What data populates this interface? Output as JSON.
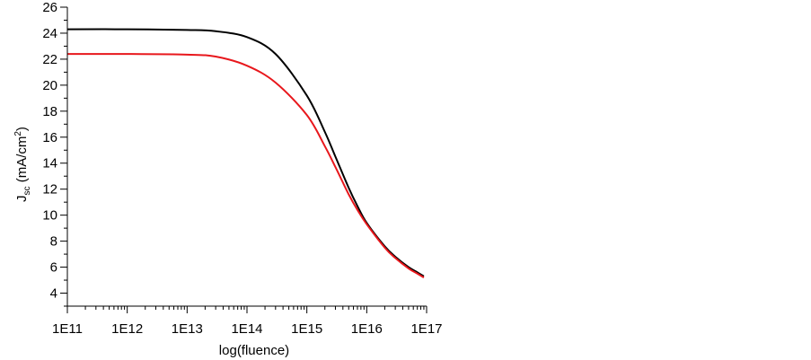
{
  "chart_data": {
    "type": "line",
    "title": "",
    "xlabel": "log(fluence)",
    "ylabel_main": "J",
    "ylabel_sub": "sc",
    "ylabel_unit_pre": " (mA/cm",
    "ylabel_unit_sup": "2",
    "ylabel_unit_post": ")",
    "x_scale": "log10",
    "xlim": [
      100000000000.0,
      1e+17
    ],
    "ylim": [
      3,
      26
    ],
    "x_ticks": [
      {
        "value": 100000000000.0,
        "label": "1E11"
      },
      {
        "value": 1000000000000.0,
        "label": "1E12"
      },
      {
        "value": 10000000000000.0,
        "label": "1E13"
      },
      {
        "value": 100000000000000.0,
        "label": "1E14"
      },
      {
        "value": 1000000000000000.0,
        "label": "1E15"
      },
      {
        "value": 1e+16,
        "label": "1E16"
      },
      {
        "value": 1e+17,
        "label": "1E17"
      }
    ],
    "y_ticks": [
      {
        "value": 4,
        "label": "4"
      },
      {
        "value": 6,
        "label": "6"
      },
      {
        "value": 8,
        "label": "8"
      },
      {
        "value": 10,
        "label": "10"
      },
      {
        "value": 12,
        "label": "12"
      },
      {
        "value": 14,
        "label": "14"
      },
      {
        "value": 16,
        "label": "16"
      },
      {
        "value": 18,
        "label": "18"
      },
      {
        "value": 20,
        "label": "20"
      },
      {
        "value": 22,
        "label": "22"
      },
      {
        "value": 24,
        "label": "24"
      },
      {
        "value": 26,
        "label": "26"
      }
    ],
    "grid": false,
    "legend": "none",
    "series": [
      {
        "color": "#000000",
        "x": [
          100000000000.0,
          1000000000000.0,
          10000000000000.0,
          30000000000000.0,
          100000000000000.0,
          300000000000000.0,
          1000000000000000.0,
          2000000000000000.0,
          3000000000000000.0,
          5000000000000000.0,
          7000000000000000.0,
          1e+16,
          2e+16,
          3e+16,
          5e+16,
          7e+16,
          9e+16
        ],
        "y": [
          24.3,
          24.3,
          24.25,
          24.15,
          23.7,
          22.4,
          19.2,
          16.4,
          14.5,
          12.1,
          10.7,
          9.4,
          7.6,
          6.8,
          6.0,
          5.6,
          5.3
        ]
      },
      {
        "color": "#e8171c",
        "x": [
          100000000000.0,
          1000000000000.0,
          10000000000000.0,
          30000000000000.0,
          100000000000000.0,
          300000000000000.0,
          1000000000000000.0,
          2000000000000000.0,
          3000000000000000.0,
          5000000000000000.0,
          7000000000000000.0,
          1e+16,
          2e+16,
          3e+16,
          5e+16,
          7e+16,
          9e+16
        ],
        "y": [
          22.4,
          22.4,
          22.35,
          22.2,
          21.5,
          20.2,
          17.7,
          15.3,
          13.7,
          11.6,
          10.4,
          9.3,
          7.5,
          6.7,
          5.9,
          5.5,
          5.2
        ]
      }
    ]
  }
}
